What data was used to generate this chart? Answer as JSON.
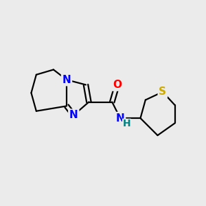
{
  "background_color": "#EBEBEB",
  "bond_color": "#000000",
  "atom_colors": {
    "N": "#0000FF",
    "O": "#FF0000",
    "S": "#CCAA00",
    "H": "#008080",
    "C": "#000000"
  },
  "lw": 1.6,
  "fontsize": 11
}
